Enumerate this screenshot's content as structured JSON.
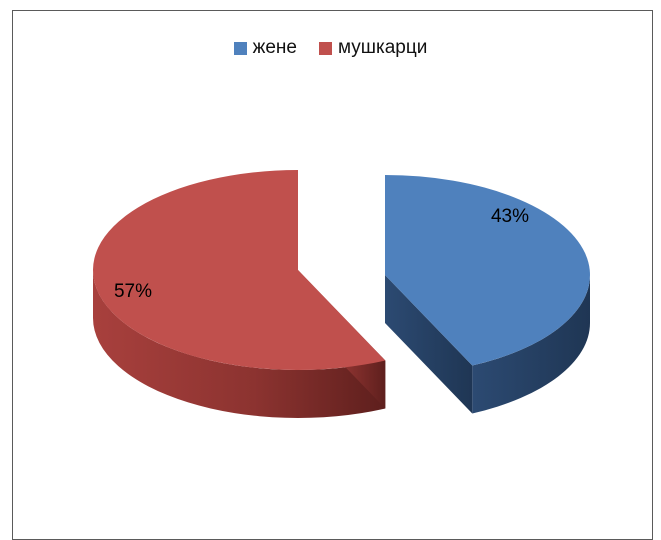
{
  "chart_data": {
    "type": "pie",
    "title": "",
    "legend_position": "top",
    "slices": [
      {
        "label": "жене",
        "value": 43,
        "value_label": "43%",
        "color": "#4f81bd"
      },
      {
        "label": "мушкарци",
        "value": 57,
        "value_label": "57%",
        "color": "#c0504d"
      }
    ]
  }
}
